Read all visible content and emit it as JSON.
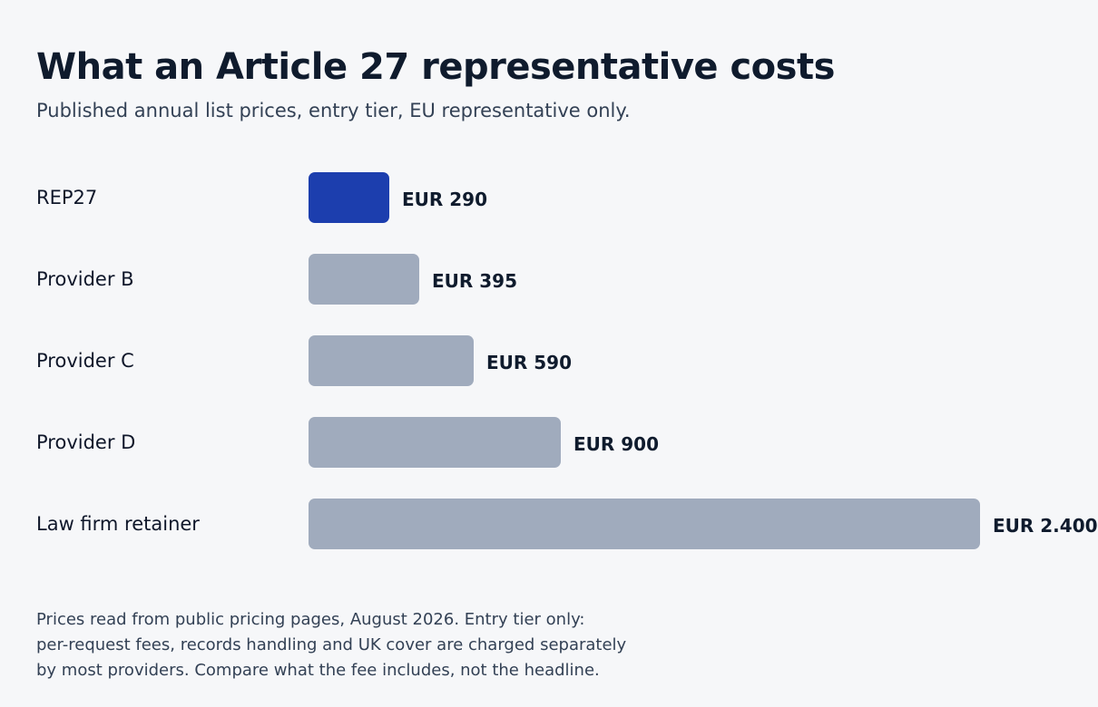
{
  "title": "What an Article 27 representative costs",
  "subtitle": "Published annual list prices, entry tier, EU representative only.",
  "colors": {
    "highlight_bar": "#1c3eae",
    "default_bar": "#a0abbd",
    "background": "#f6f7f9"
  },
  "chart_data": {
    "type": "bar",
    "orientation": "horizontal",
    "categories": [
      "REP27",
      "Provider B",
      "Provider C",
      "Provider D",
      "Law firm retainer"
    ],
    "values": [
      290,
      395,
      590,
      900,
      2400
    ],
    "value_labels": [
      "EUR 290",
      "EUR 395",
      "EUR 590",
      "EUR 900",
      "EUR 2.400"
    ],
    "highlight_index": 0,
    "xlim": [
      0,
      2400
    ],
    "grid": false,
    "legend": "none"
  },
  "footnote": {
    "lines": [
      "Prices read from public pricing pages, August 2026. Entry tier only:",
      "per-request fees, records handling and UK cover are charged separately",
      "by most providers. Compare what the fee includes, not the headline."
    ]
  }
}
